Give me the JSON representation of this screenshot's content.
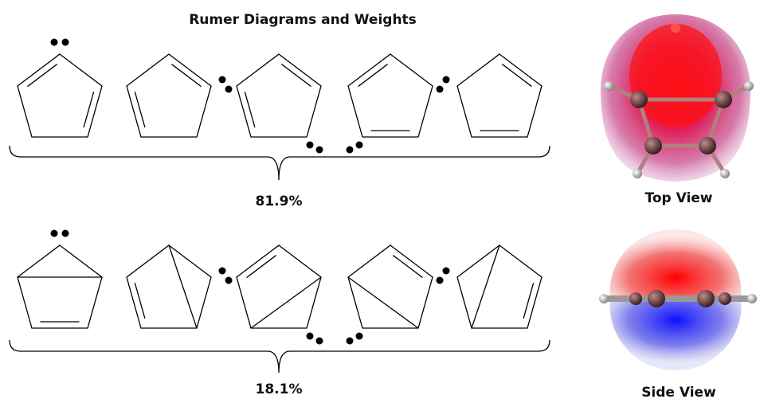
{
  "title": "Rumer Diagrams and Weights",
  "groups": [
    {
      "weight": "81.9%"
    },
    {
      "weight": "18.1%"
    }
  ],
  "views": [
    {
      "label": "Top View"
    },
    {
      "label": "Side View"
    }
  ]
}
